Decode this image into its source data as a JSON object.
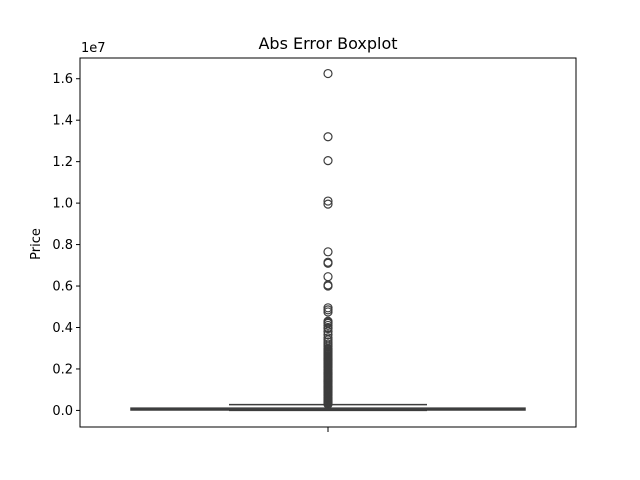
{
  "chart_data": {
    "type": "box",
    "title": "Abs Error Boxplot",
    "ylabel": "Price",
    "xlabel": "",
    "y_scale_label": "1e7",
    "ylim": [
      -800000,
      17000000
    ],
    "yticks": [
      0,
      2000000,
      4000000,
      6000000,
      8000000,
      10000000,
      12000000,
      14000000,
      16000000
    ],
    "ytick_labels": [
      "0.0",
      "0.2",
      "0.4",
      "0.6",
      "0.8",
      "1.0",
      "1.2",
      "1.4",
      "1.6"
    ],
    "grid": false,
    "box": {
      "q1": 20000,
      "median": 50000,
      "q3": 110000,
      "whisker_low": 0,
      "whisker_high": 280000
    },
    "box_color": "#4a73a8",
    "line_color": "#3d3d3d",
    "outliers": [
      16250000,
      13200000,
      12050000,
      10100000,
      9950000,
      7650000,
      7150000,
      7100000,
      6450000,
      6050000,
      6000000,
      4950000,
      4850000,
      4750000,
      4300000,
      4250000,
      4200000,
      4100000,
      4000000,
      3950000,
      3800000,
      3650000,
      3500000,
      3400000,
      3300000,
      3200000,
      3100000,
      3000000,
      2950000,
      2900000,
      2850000,
      2800000,
      2750000,
      2700000,
      2650000,
      2600000,
      2550000,
      2500000,
      2450000,
      2400000,
      2350000,
      2300000,
      2250000,
      2200000,
      2150000,
      2100000,
      2050000,
      2000000,
      1950000,
      1900000,
      1850000,
      1800000,
      1750000,
      1700000,
      1650000,
      1600000,
      1550000,
      1500000,
      1450000,
      1400000,
      1350000,
      1300000,
      1250000,
      1200000,
      1150000,
      1100000,
      1050000,
      1000000,
      950000,
      900000,
      850000,
      800000,
      750000,
      700000,
      650000,
      600000,
      550000,
      500000,
      450000,
      400000,
      350000,
      300000
    ]
  }
}
